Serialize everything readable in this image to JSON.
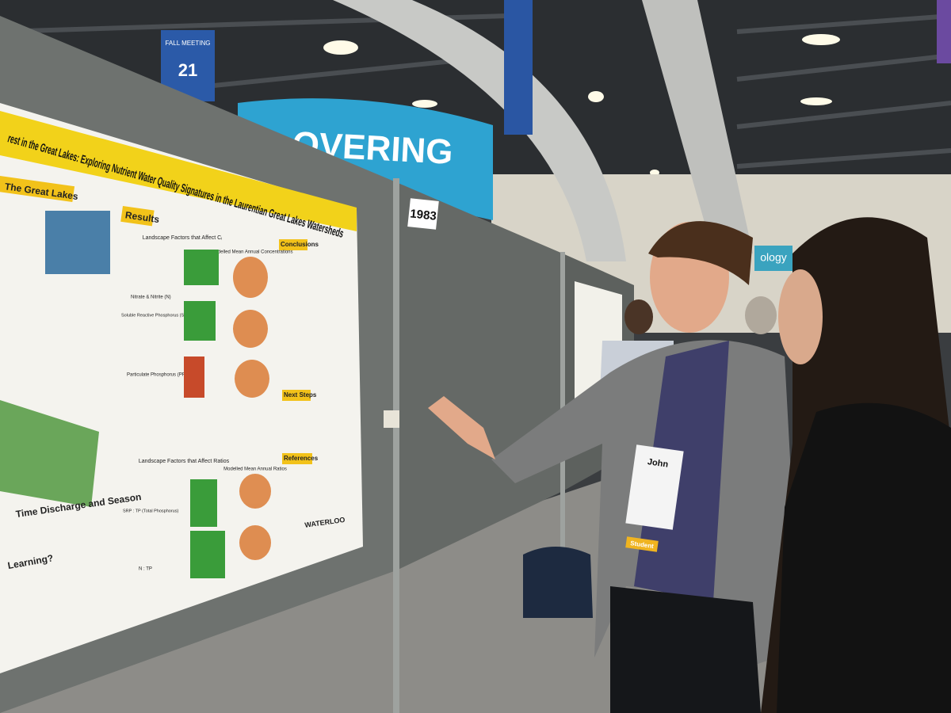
{
  "banner": {
    "text": "OVERING"
  },
  "sign": {
    "event": "FALL MEETING",
    "number": "21"
  },
  "booth_number": "1983",
  "side_sign": "ology",
  "poster": {
    "title": "rest in the Great Lakes: Exploring Nutrient Water Quality Signatures in the Laurentian Great Lakes Watersheds",
    "sections": [
      "The Great Lakes",
      "Results",
      "Conclusions",
      "Next Steps",
      "References"
    ],
    "labels": [
      "Landscape Factors that Affect Cᵢ",
      "Modelled Mean Annual Concentrations",
      "Nitrate & Nitrite (N)",
      "Soluble Reactive Phosphorus (SRP)",
      "Particulate Phosphorus (PP)",
      "Landscape Factors that Affect Ratios",
      "Modelled Mean Annual Ratios",
      "SRP : TP (Total Phosphorus)",
      "N : TP",
      "Time Discharge and Season",
      "Learning?"
    ],
    "logo": "WATERLOO"
  },
  "badge": {
    "name": "John",
    "role": "Student"
  }
}
